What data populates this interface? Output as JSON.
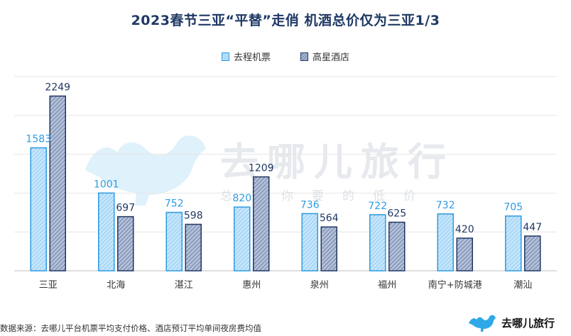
{
  "chart_data": {
    "type": "bar",
    "title": "2023春节三亚“平替”走俏 机酒总价仅为三亚1/3",
    "categories": [
      "三亚",
      "北海",
      "湛江",
      "惠州",
      "泉州",
      "福州",
      "南宁+防城港",
      "潮汕"
    ],
    "series": [
      {
        "name": "去程机票",
        "values": [
          1583,
          1001,
          752,
          820,
          736,
          722,
          732,
          705
        ]
      },
      {
        "name": "高星酒店",
        "values": [
          2249,
          697,
          598,
          1209,
          564,
          625,
          420,
          447
        ]
      }
    ],
    "ylim": [
      0,
      2500
    ],
    "grid": true,
    "legend_position": "top",
    "colors": {
      "series_a_stroke": "#2e9be0",
      "series_a_label": "#2e9be0",
      "series_b_stroke": "#1f3864",
      "series_b_label": "#1f3864",
      "grid": "#e6e6e6",
      "title": "#1f3864"
    }
  },
  "watermark": {
    "name": "去哪儿旅行",
    "slogan": "总有你要的低价",
    "icon": "camel-icon"
  },
  "source": "数据来源：去哪儿平台机票平均支付价格、酒店预订平均单间夜房费均值",
  "logo": {
    "text": "去哪儿旅行",
    "icon": "camel-icon"
  }
}
